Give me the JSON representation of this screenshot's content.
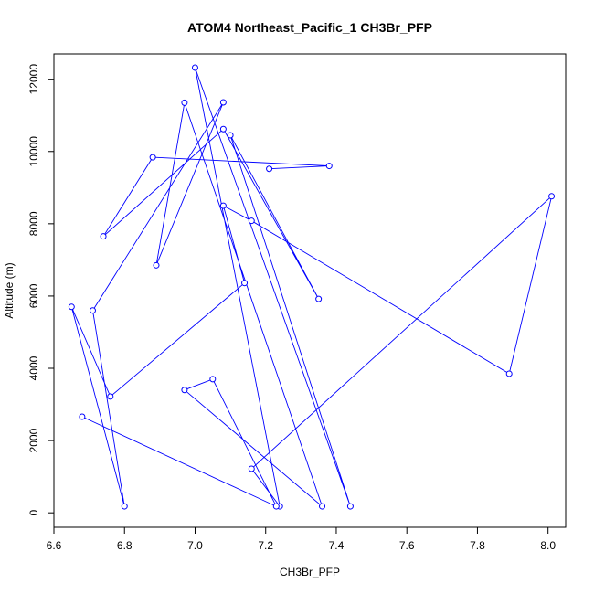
{
  "chart_data": {
    "type": "line",
    "title": "ATOM4 Northeast_Pacific_1 CH3Br_PFP",
    "xlabel": "CH3Br_PFP",
    "ylabel": "Altitude (m)",
    "xlim": [
      6.6,
      8.05
    ],
    "ylim": [
      -400,
      12700
    ],
    "xticks": [
      6.6,
      6.8,
      7.0,
      7.2,
      7.4,
      7.6,
      7.8,
      8.0
    ],
    "xtick_labels": [
      "6.6",
      "6.8",
      "7.0",
      "7.2",
      "7.4",
      "7.6",
      "7.8",
      "8.0"
    ],
    "yticks": [
      0,
      2000,
      4000,
      6000,
      8000,
      10000,
      12000
    ],
    "ytick_labels": [
      "0",
      "2000",
      "4000",
      "6000",
      "8000",
      "10000",
      "12000"
    ],
    "grid": false,
    "legend": "none",
    "marker": "open-circle",
    "series": [
      {
        "color": "#0000ff",
        "x": [
          7.21,
          7.38,
          6.88,
          6.74,
          7.08,
          7.35,
          7.1,
          7.44,
          7.0,
          7.24,
          7.16,
          8.01,
          7.89,
          7.16,
          7.08,
          7.14,
          6.76,
          6.65,
          6.8,
          6.71,
          7.08,
          6.89,
          6.97,
          7.36,
          6.97,
          7.05,
          7.23,
          6.68
        ],
        "y": [
          9520,
          9600,
          9840,
          7650,
          10620,
          5920,
          10450,
          180,
          12320,
          180,
          1220,
          8760,
          3850,
          8080,
          8500,
          6360,
          3220,
          5700,
          180,
          5600,
          11360,
          6850,
          11350,
          180,
          3400,
          3700,
          180,
          2660
        ]
      }
    ]
  }
}
